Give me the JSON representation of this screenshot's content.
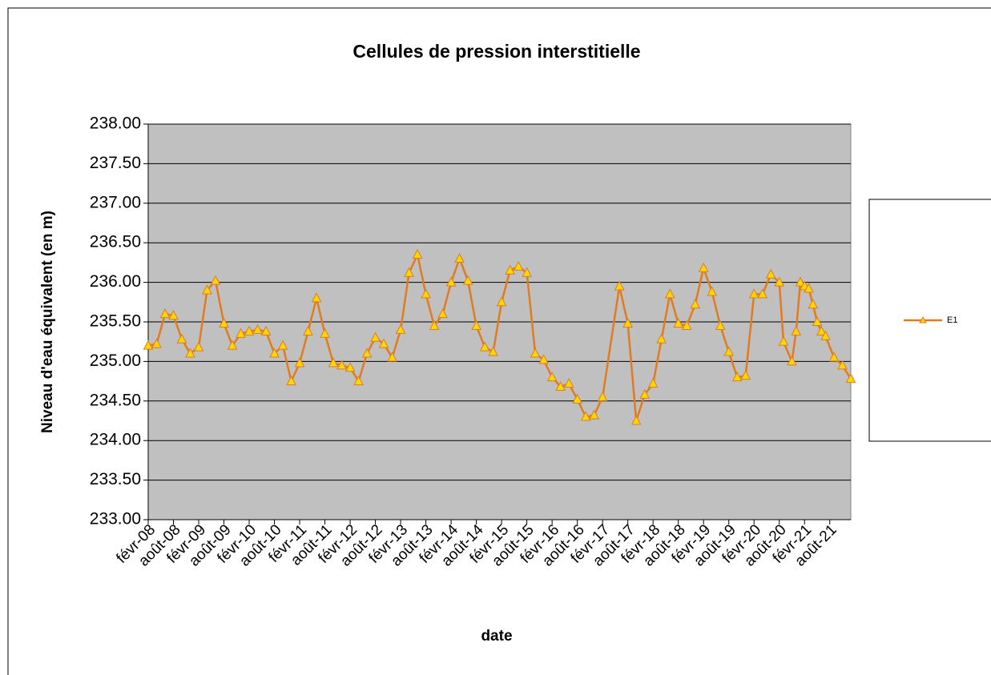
{
  "chart_data": {
    "type": "line",
    "title": "Cellules de pression interstitielle",
    "xlabel": "date",
    "ylabel": "Niveau d'eau équivalent  (en m)",
    "x": [
      "2008-02",
      "2008-04",
      "2008-06",
      "2008-08",
      "2008-10",
      "2008-12",
      "2009-02",
      "2009-04",
      "2009-06",
      "2009-08",
      "2009-10",
      "2009-12",
      "2010-02",
      "2010-04",
      "2010-06",
      "2010-08",
      "2010-10",
      "2010-12",
      "2011-02",
      "2011-04",
      "2011-06",
      "2011-08",
      "2011-10",
      "2011-12",
      "2012-02",
      "2012-04",
      "2012-06",
      "2012-08",
      "2012-10",
      "2012-12",
      "2013-02",
      "2013-04",
      "2013-06",
      "2013-08",
      "2013-10",
      "2013-12",
      "2014-02",
      "2014-04",
      "2014-06",
      "2014-08",
      "2014-10",
      "2014-12",
      "2015-02",
      "2015-04",
      "2015-06",
      "2015-08",
      "2015-10",
      "2015-12",
      "2016-02",
      "2016-04",
      "2016-06",
      "2016-08",
      "2016-10",
      "2016-12",
      "2017-02",
      "2017-06",
      "2017-08",
      "2017-10",
      "2017-12",
      "2018-02",
      "2018-04",
      "2018-06",
      "2018-08",
      "2018-10",
      "2018-12",
      "2019-02",
      "2019-04",
      "2019-06",
      "2019-08",
      "2019-10",
      "2019-12",
      "2020-02",
      "2020-04",
      "2020-06",
      "2020-08",
      "2020-09",
      "2020-11",
      "2020-12",
      "2021-01",
      "2021-02",
      "2021-03",
      "2021-04",
      "2021-05",
      "2021-06",
      "2021-07",
      "2021-09",
      "2021-11",
      "2022-01"
    ],
    "series": [
      {
        "name": "E1",
        "color": "#e07b20",
        "marker_color": "#ffd700",
        "values": [
          235.2,
          235.22,
          235.6,
          235.58,
          235.28,
          235.1,
          235.18,
          235.9,
          236.02,
          235.48,
          235.2,
          235.35,
          235.38,
          235.4,
          235.38,
          235.1,
          235.2,
          234.75,
          234.98,
          235.38,
          235.8,
          235.35,
          234.98,
          234.95,
          234.92,
          234.75,
          235.1,
          235.3,
          235.22,
          235.05,
          235.4,
          236.12,
          236.35,
          235.85,
          235.45,
          235.6,
          236.0,
          236.3,
          236.02,
          235.45,
          235.18,
          235.12,
          235.75,
          236.15,
          236.2,
          236.12,
          235.1,
          235.02,
          234.8,
          234.68,
          234.72,
          234.52,
          234.3,
          234.32,
          234.55,
          235.95,
          235.48,
          234.25,
          234.58,
          234.72,
          235.28,
          235.85,
          235.48,
          235.45,
          235.72,
          236.18,
          235.88,
          235.45,
          235.12,
          234.8,
          234.82,
          235.85,
          235.85,
          236.1,
          236.0,
          235.25,
          235.0,
          235.38,
          236.0,
          235.95,
          235.92,
          235.72,
          235.5,
          235.38,
          235.32,
          235.05,
          234.95,
          234.78
        ]
      }
    ],
    "xlim": [
      "2008-02",
      "2022-01"
    ],
    "xticks": [
      {
        "value": "2008-02",
        "label": "févr-08"
      },
      {
        "value": "2008-08",
        "label": "août-08"
      },
      {
        "value": "2009-02",
        "label": "févr-09"
      },
      {
        "value": "2009-08",
        "label": "août-09"
      },
      {
        "value": "2010-02",
        "label": "févr-10"
      },
      {
        "value": "2010-08",
        "label": "août-10"
      },
      {
        "value": "2011-02",
        "label": "févr-11"
      },
      {
        "value": "2011-08",
        "label": "août-11"
      },
      {
        "value": "2012-02",
        "label": "févr-12"
      },
      {
        "value": "2012-08",
        "label": "août-12"
      },
      {
        "value": "2013-02",
        "label": "févr-13"
      },
      {
        "value": "2013-08",
        "label": "août-13"
      },
      {
        "value": "2014-02",
        "label": "févr-14"
      },
      {
        "value": "2014-08",
        "label": "août-14"
      },
      {
        "value": "2015-02",
        "label": "févr-15"
      },
      {
        "value": "2015-08",
        "label": "août-15"
      },
      {
        "value": "2016-02",
        "label": "févr-16"
      },
      {
        "value": "2016-08",
        "label": "août-16"
      },
      {
        "value": "2017-02",
        "label": "févr-17"
      },
      {
        "value": "2017-08",
        "label": "août-17"
      },
      {
        "value": "2018-02",
        "label": "févr-18"
      },
      {
        "value": "2018-08",
        "label": "août-18"
      },
      {
        "value": "2019-02",
        "label": "févr-19"
      },
      {
        "value": "2019-08",
        "label": "août-19"
      },
      {
        "value": "2020-02",
        "label": "févr-20"
      },
      {
        "value": "2020-08",
        "label": "août-20"
      },
      {
        "value": "2021-02",
        "label": "févr-21"
      },
      {
        "value": "2021-08",
        "label": "août-21"
      }
    ],
    "ylim": [
      233,
      238
    ],
    "yticks": [
      {
        "value": 233,
        "label": "233.00"
      },
      {
        "value": 233.5,
        "label": "233.50"
      },
      {
        "value": 234,
        "label": "234.00"
      },
      {
        "value": 234.5,
        "label": "234.50"
      },
      {
        "value": 235,
        "label": "235.00"
      },
      {
        "value": 235.5,
        "label": "235.50"
      },
      {
        "value": 236,
        "label": "236.00"
      },
      {
        "value": 236.5,
        "label": "236.50"
      },
      {
        "value": 237,
        "label": "237.00"
      },
      {
        "value": 237.5,
        "label": "237.50"
      },
      {
        "value": 238,
        "label": "238.00"
      }
    ],
    "grid": true,
    "plot_background": "#c0c0c0",
    "legend": "right"
  }
}
